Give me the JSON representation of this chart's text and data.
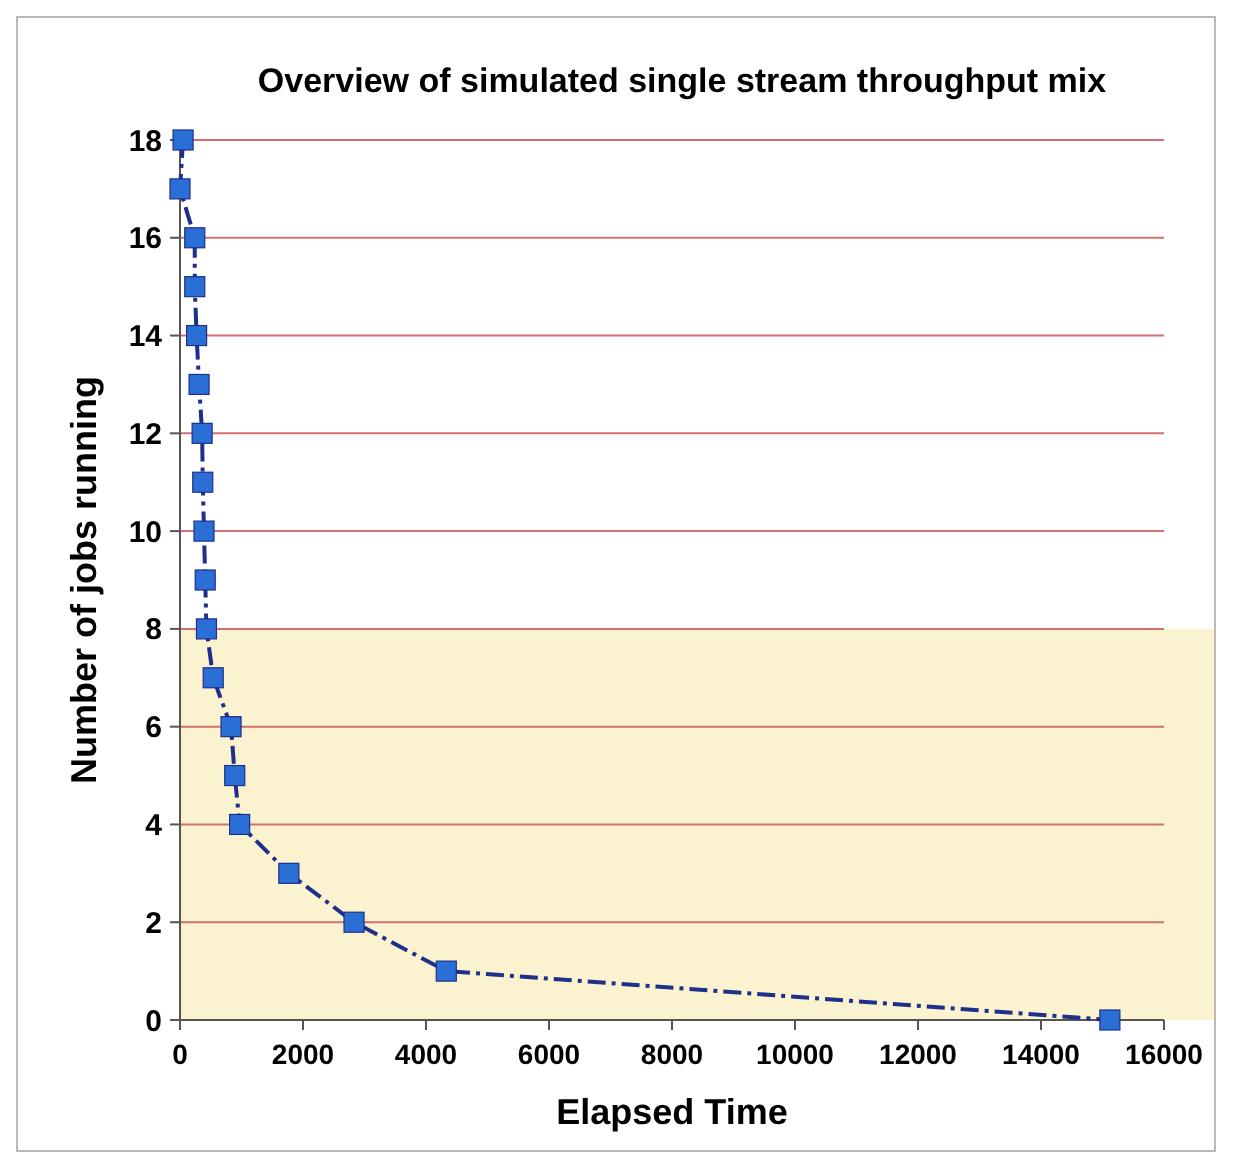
{
  "chart_data": {
    "type": "line",
    "title": "Overview of simulated single stream throughput mix",
    "xlabel": "Elapsed Time",
    "ylabel": "Number of jobs running",
    "x": [
      50,
      0,
      240,
      240,
      270,
      310,
      360,
      370,
      390,
      410,
      430,
      540,
      830,
      890,
      970,
      1770,
      2830,
      4330,
      15120
    ],
    "series": [
      {
        "color": "#1f2f8a",
        "values": [
          18,
          17,
          16,
          15,
          14,
          13,
          12,
          11,
          10,
          9,
          8,
          7,
          6,
          5,
          4,
          3,
          2,
          1,
          0
        ]
      }
    ],
    "xlim": [
      0,
      16000
    ],
    "xticks": [
      0,
      2000,
      4000,
      6000,
      8000,
      10000,
      12000,
      14000,
      16000
    ],
    "ylim": [
      0,
      18
    ],
    "yticks": [
      0,
      2,
      4,
      6,
      8,
      10,
      12,
      14,
      16,
      18
    ],
    "grid": "y",
    "marker": "square",
    "line_style": "dashed",
    "bands": [
      {
        "axis": "y",
        "from": 0,
        "to": 8,
        "color": "#fbf3d0"
      }
    ]
  }
}
